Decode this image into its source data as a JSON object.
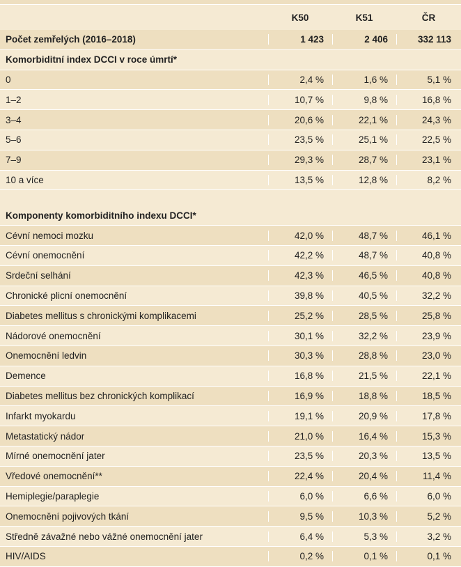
{
  "header": {
    "cols": [
      "K50",
      "K51",
      "ČR"
    ]
  },
  "deaths": {
    "label": "Počet zemřelých (2016–2018)",
    "values": [
      "1 423",
      "2 406",
      "332 113"
    ]
  },
  "section1": {
    "title": "Komorbiditní index DCCI v roce úmrtí*",
    "rows": [
      {
        "label": "0",
        "values": [
          "2,4 %",
          "1,6 %",
          "5,1 %"
        ]
      },
      {
        "label": "1–2",
        "values": [
          "10,7 %",
          "9,8 %",
          "16,8 %"
        ]
      },
      {
        "label": "3–4",
        "values": [
          "20,6 %",
          "22,1 %",
          "24,3 %"
        ]
      },
      {
        "label": "5–6",
        "values": [
          "23,5 %",
          "25,1 %",
          "22,5 %"
        ]
      },
      {
        "label": "7–9",
        "values": [
          "29,3 %",
          "28,7 %",
          "23,1 %"
        ]
      },
      {
        "label": "10 a více",
        "values": [
          "13,5 %",
          "12,8 %",
          "8,2 %"
        ]
      }
    ]
  },
  "section2": {
    "title": "Komponenty komorbiditního indexu DCCI*",
    "rows": [
      {
        "label": "Cévní nemoci mozku",
        "values": [
          "42,0 %",
          "48,7 %",
          "46,1 %"
        ]
      },
      {
        "label": "Cévní onemocnění",
        "values": [
          "42,2 %",
          "48,7 %",
          "40,8 %"
        ]
      },
      {
        "label": "Srdeční selhání",
        "values": [
          "42,3 %",
          "46,5 %",
          "40,8 %"
        ]
      },
      {
        "label": "Chronické plicní onemocnění",
        "values": [
          "39,8 %",
          "40,5 %",
          "32,2 %"
        ]
      },
      {
        "label": "Diabetes mellitus s chronickými komplikacemi",
        "values": [
          "25,2 %",
          "28,5 %",
          "25,8 %"
        ]
      },
      {
        "label": "Nádorové onemocnění",
        "values": [
          "30,1 %",
          "32,2 %",
          "23,9 %"
        ]
      },
      {
        "label": "Onemocnění ledvin",
        "values": [
          "30,3 %",
          "28,8 %",
          "23,0 %"
        ]
      },
      {
        "label": "Demence",
        "values": [
          "16,8 %",
          "21,5 %",
          "22,1 %"
        ]
      },
      {
        "label": "Diabetes mellitus bez chronických komplikací",
        "values": [
          "16,9 %",
          "18,8 %",
          "18,5 %"
        ]
      },
      {
        "label": "Infarkt myokardu",
        "values": [
          "19,1 %",
          "20,9 %",
          "17,8 %"
        ]
      },
      {
        "label": "Metastatický nádor",
        "values": [
          "21,0 %",
          "16,4 %",
          "15,3 %"
        ]
      },
      {
        "label": "Mírné onemocnění jater",
        "values": [
          "23,5 %",
          "20,3 %",
          "13,5 %"
        ]
      },
      {
        "label": "Vředové onemocnění**",
        "values": [
          "22,4 %",
          "20,4 %",
          "11,4 %"
        ]
      },
      {
        "label": "Hemiplegie/paraplegie",
        "values": [
          "6,0 %",
          "6,6 %",
          "6,0 %"
        ]
      },
      {
        "label": "Onemocnění pojivových tkání",
        "values": [
          "9,5 %",
          "10,3 %",
          "5,2 %"
        ]
      },
      {
        "label": "Středně závažné nebo vážné onemocnění jater",
        "values": [
          "6,4 %",
          "5,3 %",
          "3,2 %"
        ]
      },
      {
        "label": "HIV/AIDS",
        "values": [
          "0,2 %",
          "0,1 %",
          "0,1 %"
        ]
      }
    ]
  }
}
